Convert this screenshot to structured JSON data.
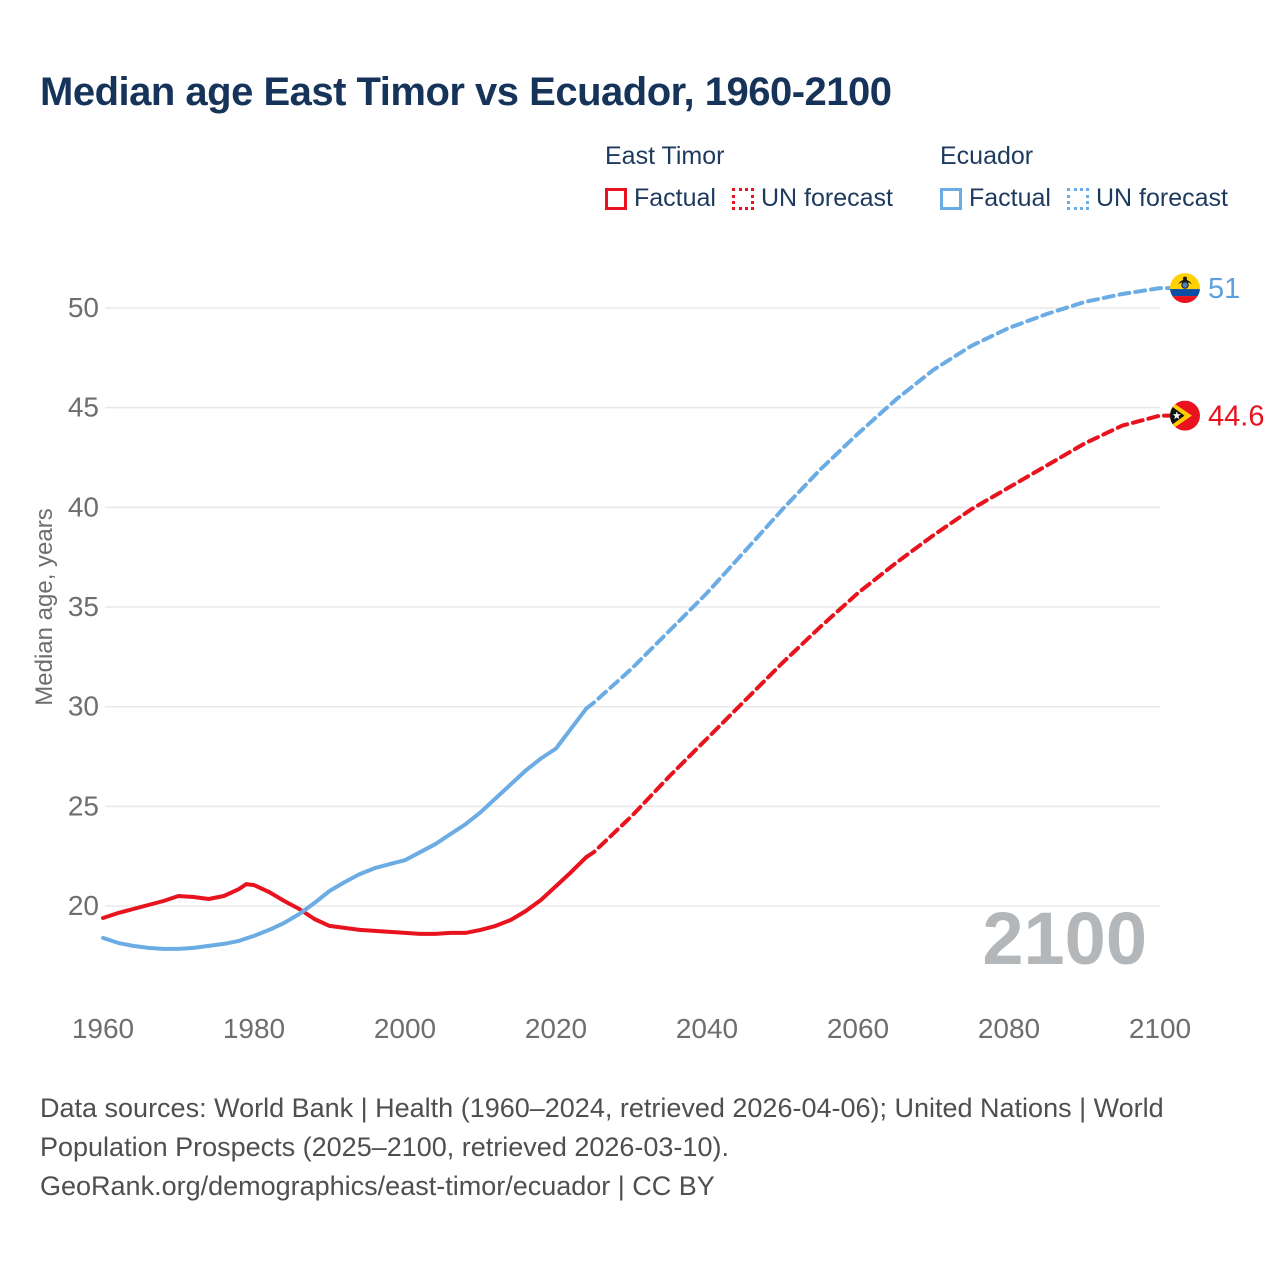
{
  "title": "Median age East Timor vs Ecuador, 1960-2100",
  "legend": {
    "groups": [
      {
        "label": "East Timor",
        "color": "#e8131e",
        "items": [
          {
            "label": "Factual",
            "style": "solid"
          },
          {
            "label": "UN forecast",
            "style": "dotted"
          }
        ]
      },
      {
        "label": "Ecuador",
        "color": "#6cace4",
        "items": [
          {
            "label": "Factual",
            "style": "solid"
          },
          {
            "label": "UN forecast",
            "style": "dotted"
          }
        ]
      }
    ]
  },
  "watermark": "2100",
  "colors": {
    "east_timor": "#e8131e",
    "ecuador": "#6cace4",
    "ecuador_label": "#5da0dd",
    "title_text": "#16335a",
    "axis_text": "#6e6e6e",
    "gridline": "#e7e8ea",
    "watermark": "#b3b7ba",
    "footer_text": "#4f4f4f"
  },
  "end_labels": [
    {
      "series": "Ecuador",
      "label": "51",
      "value": 51,
      "flag": "ecuador",
      "color": "#5da0dd"
    },
    {
      "series": "East Timor",
      "label": "44.6",
      "value": 44.6,
      "flag": "east-timor",
      "color": "#e8131e"
    }
  ],
  "footer": {
    "line1": "Data sources: World Bank | Health (1960–2024, retrieved 2026-04-06); United Nations | World",
    "line2": "Population Prospects (2025–2100, retrieved 2026-03-10).",
    "line3": "GeoRank.org/demographics/east-timor/ecuador | CC BY"
  },
  "chart_data": {
    "type": "line",
    "title": "Median age East Timor vs Ecuador, 1960-2100",
    "xlabel": "",
    "ylabel": "Median age, years",
    "x_ticks": [
      1960,
      1980,
      2000,
      2020,
      2040,
      2060,
      2080,
      2100
    ],
    "y_ticks": [
      20,
      25,
      30,
      35,
      40,
      45,
      50
    ],
    "xlim": [
      1960,
      2100
    ],
    "ylim_drawn": [
      20,
      50
    ],
    "grid": "horizontal-only",
    "legend_position": "top-right",
    "series": [
      {
        "name": "East Timor — Factual",
        "country": "East Timor",
        "color": "#e8131e",
        "style": "solid",
        "points": [
          [
            1960,
            19.4
          ],
          [
            1962,
            19.65
          ],
          [
            1964,
            19.85
          ],
          [
            1966,
            20.05
          ],
          [
            1968,
            20.25
          ],
          [
            1970,
            20.5
          ],
          [
            1972,
            20.45
          ],
          [
            1974,
            20.35
          ],
          [
            1976,
            20.5
          ],
          [
            1978,
            20.85
          ],
          [
            1979,
            21.1
          ],
          [
            1980,
            21.05
          ],
          [
            1982,
            20.7
          ],
          [
            1984,
            20.25
          ],
          [
            1986,
            19.85
          ],
          [
            1988,
            19.35
          ],
          [
            1990,
            19.0
          ],
          [
            1992,
            18.9
          ],
          [
            1994,
            18.8
          ],
          [
            1996,
            18.75
          ],
          [
            1998,
            18.7
          ],
          [
            2000,
            18.65
          ],
          [
            2002,
            18.6
          ],
          [
            2004,
            18.6
          ],
          [
            2006,
            18.65
          ],
          [
            2008,
            18.65
          ],
          [
            2010,
            18.8
          ],
          [
            2012,
            19.0
          ],
          [
            2014,
            19.3
          ],
          [
            2016,
            19.75
          ],
          [
            2018,
            20.3
          ],
          [
            2020,
            21.0
          ],
          [
            2022,
            21.7
          ],
          [
            2024,
            22.45
          ]
        ]
      },
      {
        "name": "East Timor — UN forecast",
        "country": "East Timor",
        "color": "#e8131e",
        "style": "dashed",
        "points": [
          [
            2025,
            22.7
          ],
          [
            2030,
            24.5
          ],
          [
            2035,
            26.5
          ],
          [
            2040,
            28.4
          ],
          [
            2045,
            30.3
          ],
          [
            2050,
            32.2
          ],
          [
            2055,
            34.0
          ],
          [
            2060,
            35.7
          ],
          [
            2065,
            37.2
          ],
          [
            2070,
            38.6
          ],
          [
            2075,
            39.9
          ],
          [
            2080,
            41.0
          ],
          [
            2085,
            42.1
          ],
          [
            2090,
            43.2
          ],
          [
            2095,
            44.1
          ],
          [
            2100,
            44.6
          ]
        ]
      },
      {
        "name": "Ecuador — Factual",
        "country": "Ecuador",
        "color": "#6cace4",
        "style": "solid",
        "points": [
          [
            1960,
            18.4
          ],
          [
            1962,
            18.15
          ],
          [
            1964,
            18.0
          ],
          [
            1966,
            17.9
          ],
          [
            1968,
            17.85
          ],
          [
            1970,
            17.85
          ],
          [
            1972,
            17.9
          ],
          [
            1974,
            18.0
          ],
          [
            1976,
            18.1
          ],
          [
            1978,
            18.25
          ],
          [
            1980,
            18.5
          ],
          [
            1982,
            18.8
          ],
          [
            1984,
            19.15
          ],
          [
            1986,
            19.6
          ],
          [
            1988,
            20.15
          ],
          [
            1990,
            20.75
          ],
          [
            1992,
            21.2
          ],
          [
            1994,
            21.6
          ],
          [
            1996,
            21.9
          ],
          [
            1998,
            22.1
          ],
          [
            2000,
            22.3
          ],
          [
            2002,
            22.7
          ],
          [
            2004,
            23.1
          ],
          [
            2006,
            23.6
          ],
          [
            2008,
            24.1
          ],
          [
            2010,
            24.7
          ],
          [
            2012,
            25.4
          ],
          [
            2014,
            26.1
          ],
          [
            2016,
            26.8
          ],
          [
            2018,
            27.4
          ],
          [
            2020,
            27.9
          ],
          [
            2022,
            28.9
          ],
          [
            2024,
            29.9
          ]
        ]
      },
      {
        "name": "Ecuador — UN forecast",
        "country": "Ecuador",
        "color": "#6cace4",
        "style": "dashed",
        "points": [
          [
            2025,
            30.2
          ],
          [
            2030,
            31.9
          ],
          [
            2035,
            33.8
          ],
          [
            2040,
            35.7
          ],
          [
            2045,
            37.8
          ],
          [
            2050,
            39.9
          ],
          [
            2055,
            41.9
          ],
          [
            2060,
            43.7
          ],
          [
            2065,
            45.4
          ],
          [
            2070,
            46.9
          ],
          [
            2075,
            48.1
          ],
          [
            2080,
            49.0
          ],
          [
            2085,
            49.7
          ],
          [
            2090,
            50.3
          ],
          [
            2095,
            50.7
          ],
          [
            2100,
            51.0
          ]
        ]
      }
    ]
  }
}
